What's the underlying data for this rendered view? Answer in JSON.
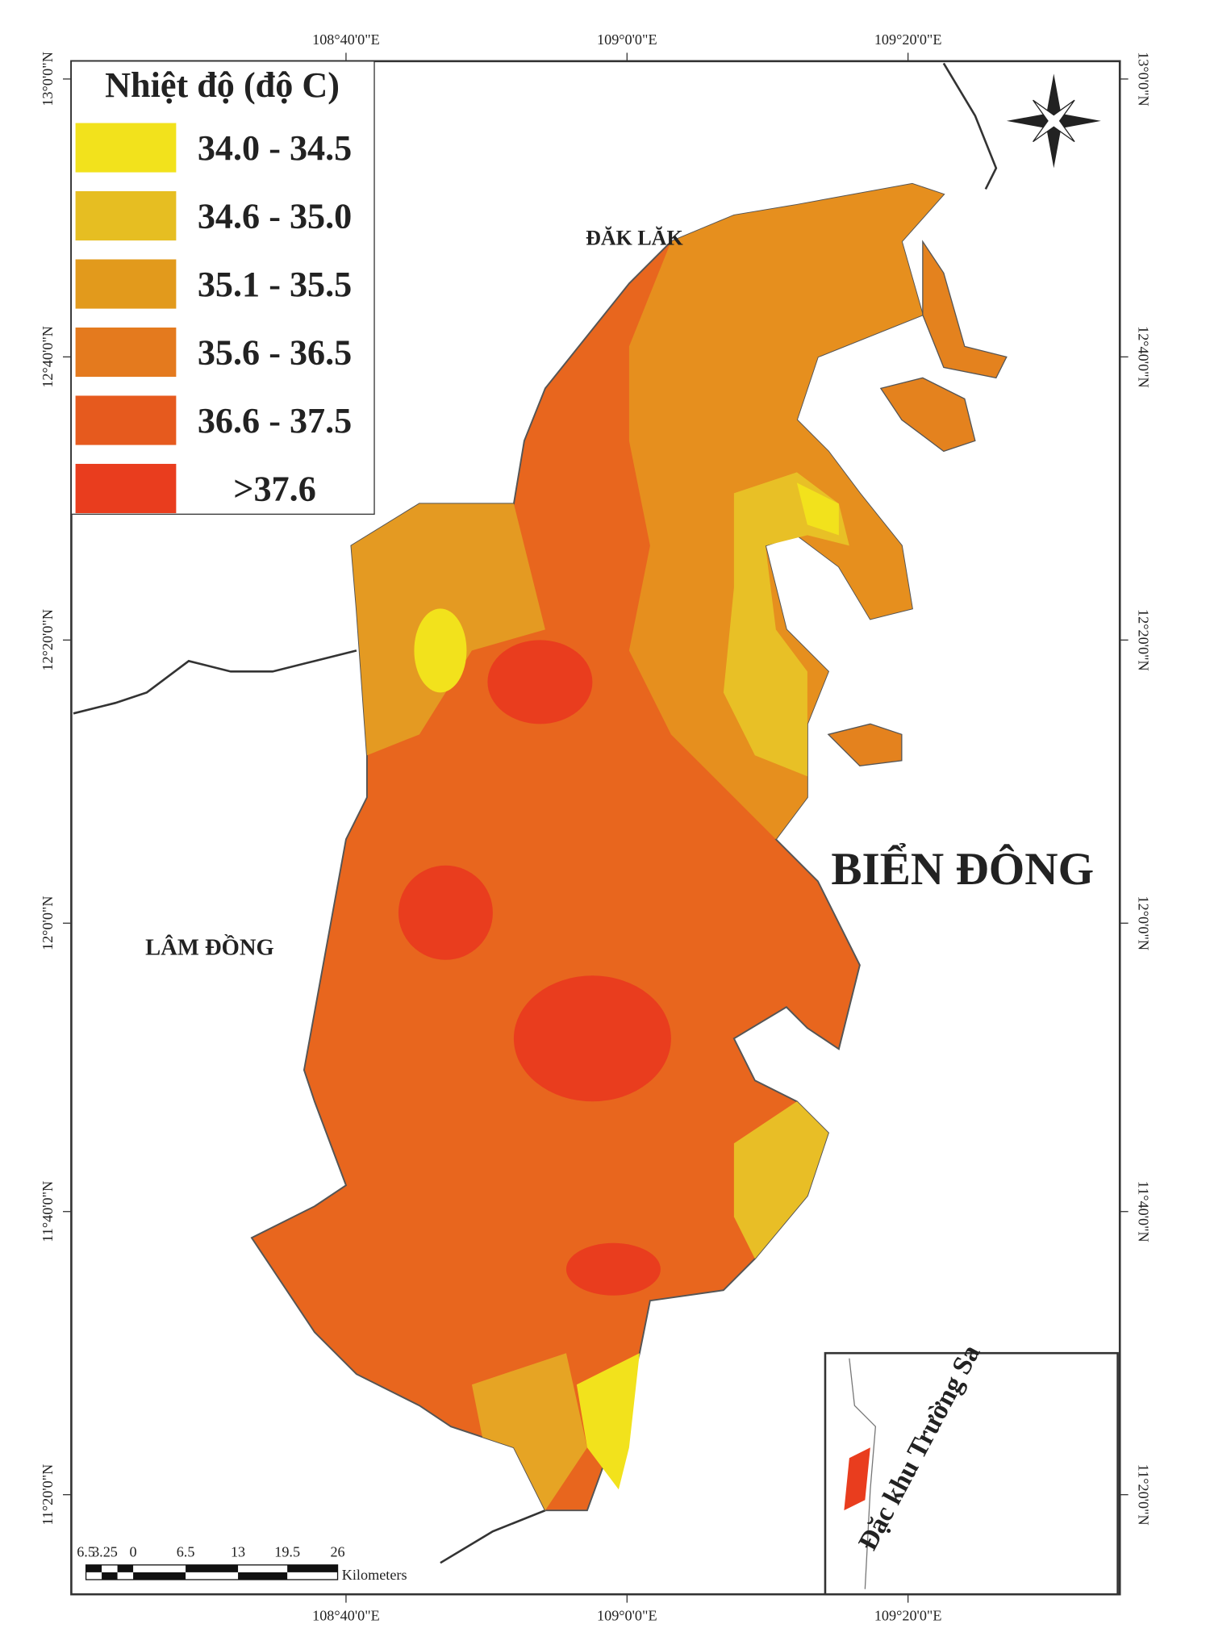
{
  "map": {
    "legend": {
      "title": "Nhiệt độ (độ C)",
      "items": [
        {
          "label": "34.0 - 34.5",
          "color": "#f2e21c"
        },
        {
          "label": "34.6 - 35.0",
          "color": "#e6be22"
        },
        {
          "label": "35.1 - 35.5",
          "color": "#e29a1c"
        },
        {
          "label": "35.6 - 36.5",
          "color": "#e47a1e"
        },
        {
          "label": "36.6 - 37.5",
          "color": "#e65a1e"
        },
        {
          "label": ">37.6",
          "color": "#e93d1e"
        }
      ]
    },
    "regions": {
      "north": "ĐĂK LĂK",
      "west": "LÂM ĐỒNG",
      "sea": "BIỂN ĐÔNG",
      "inset": "Đặc khu Trường Sa"
    },
    "lon_labels": [
      "108°40'0\"E",
      "109°0'0\"E",
      "109°20'0\"E"
    ],
    "lat_labels": [
      "13°0'0\"N",
      "12°40'0\"N",
      "12°20'0\"N",
      "12°0'0\"N",
      "11°40'0\"N",
      "11°20'0\"N"
    ],
    "scale_bar": {
      "labels": [
        "6.5",
        "3.25",
        "0",
        "6.5",
        "13",
        "19.5",
        "26"
      ],
      "unit": "Kilometers"
    }
  }
}
